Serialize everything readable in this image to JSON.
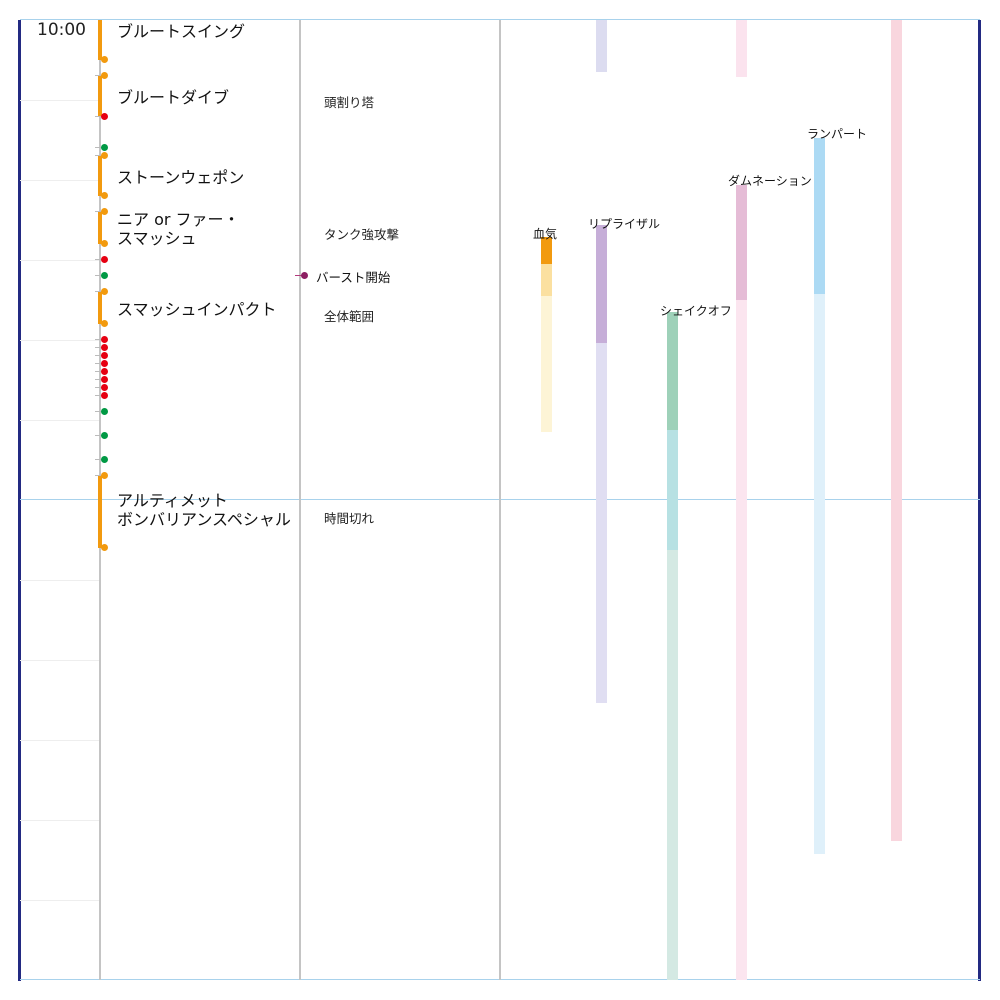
{
  "timeline": {
    "time_label": "10:00"
  },
  "boss_skills": [
    {
      "name": "ブルートスイング"
    },
    {
      "name": "ブルートダイブ"
    },
    {
      "name": "ストーンウェポン"
    },
    {
      "name": "ニア or ファー・スマッシュ",
      "name_lines": [
        "ニア or ファー・",
        "スマッシュ"
      ]
    },
    {
      "name": "スマッシュインパクト"
    },
    {
      "name": "アルティメットボンバリアンスペシャル",
      "name_lines": [
        "アルティメット",
        "ボンバリアンスペシャル"
      ]
    }
  ],
  "notes": [
    "頭割り塔",
    "タンク強攻撃",
    "全体範囲",
    "時間切れ"
  ],
  "burst_marker": {
    "label": "バースト開始"
  },
  "buffs": [
    "血気",
    "リプライザル",
    "シェイクオフ",
    "ダムネーション",
    "ランパート"
  ],
  "marker_colors": {
    "cast": "#f29a0f",
    "damage": "#e60012",
    "other": "#009944",
    "burst": "#8c1f62",
    "frame": "#232a82"
  }
}
